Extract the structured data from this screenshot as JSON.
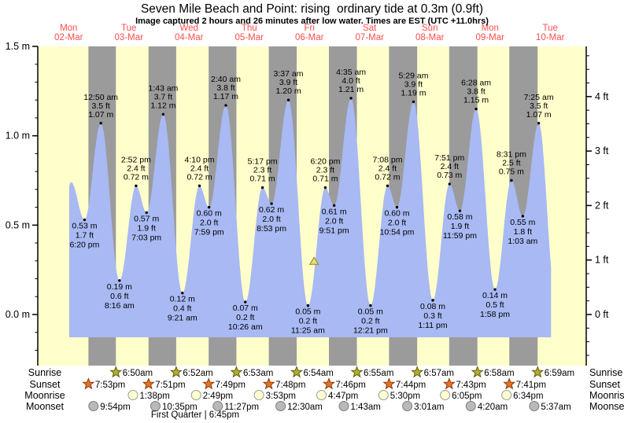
{
  "header": {
    "title": "Seven Mile Beach and Point: rising  ordinary tide at 0.3m (0.9ft)",
    "subtitle": "Image captured 2 hours and 26 minutes after low water. Times are EST (UTC +11.0hrs)"
  },
  "footer": {
    "row_labels_left": [
      "Sunrise",
      "Sunset",
      "Moonrise",
      "Moonset"
    ],
    "row_labels_right": [
      "Sunrise",
      "Sunset",
      "Moonrise",
      "Moonset"
    ],
    "moon_phase_note": "First Quarter | 6:45pm"
  },
  "colors": {
    "day_band": "#ffffcc",
    "night_band": "#9b9b9b",
    "tide_fill": "#a8b9f3",
    "day_header_text": "#ff4d4d",
    "axis_text": "#000000",
    "sunrise_star_fill": "#b5ae2a",
    "sunrise_star_stroke": "#5e5e14",
    "sunset_star_fill": "#e2761f",
    "sunset_star_stroke": "#8f3a10",
    "moonrise_fill": "#ffffd2",
    "moonrise_stroke": "#999999",
    "moonset_fill": "#b9b9b9",
    "moonset_stroke": "#7d7d7d",
    "marker_fill": "#e8e060",
    "marker_stroke": "#85852f"
  },
  "chart_data": {
    "type": "area",
    "title": "Seven Mile Beach and Point: rising ordinary tide at 0.3m (0.9ft)",
    "ylabel_left": "meters",
    "ylabel_right": "feet",
    "ylim_m": [
      -0.28,
      1.5
    ],
    "y_ticks_m": [
      {
        "v": 1.5,
        "label": "1.5 m"
      },
      {
        "v": 1.0,
        "label": "1.0 m"
      },
      {
        "v": 0.5,
        "label": "0.5 m"
      },
      {
        "v": 0.0,
        "label": "0.0 m"
      }
    ],
    "y_ticks_ft": [
      {
        "v": 4,
        "label": "4 ft"
      },
      {
        "v": 3,
        "label": "3 ft"
      },
      {
        "v": 2,
        "label": "2 ft"
      },
      {
        "v": 1,
        "label": "1 ft"
      },
      {
        "v": 0,
        "label": "0 ft"
      }
    ],
    "days": [
      {
        "weekday": "Mon",
        "date": "02-Mar"
      },
      {
        "weekday": "Tue",
        "date": "03-Mar"
      },
      {
        "weekday": "Wed",
        "date": "04-Mar"
      },
      {
        "weekday": "Thu",
        "date": "05-Mar"
      },
      {
        "weekday": "Fri",
        "date": "06-Mar"
      },
      {
        "weekday": "Sat",
        "date": "07-Mar"
      },
      {
        "weekday": "Sun",
        "date": "08-Mar"
      },
      {
        "weekday": "Mon",
        "date": "09-Mar"
      },
      {
        "weekday": "Tue",
        "date": "10-Mar"
      }
    ],
    "extremes": [
      {
        "day": 0,
        "time": "13:00",
        "type": "high",
        "m": 0.74,
        "labeled": false
      },
      {
        "day": 0,
        "time": "18:20",
        "type": "low",
        "m": 0.53,
        "labeled": true,
        "m_label": "0.53 m",
        "ft_label": "1.7 ft",
        "time_label": "6:20 pm"
      },
      {
        "day": 1,
        "time": "00:50",
        "type": "high",
        "m": 1.07,
        "labeled": true,
        "m_label": "1.07 m",
        "ft_label": "3.5 ft",
        "time_label": "12:50 am"
      },
      {
        "day": 1,
        "time": "08:16",
        "type": "low",
        "m": 0.19,
        "labeled": true,
        "m_label": "0.19 m",
        "ft_label": "0.6 ft",
        "time_label": "8:16 am"
      },
      {
        "day": 1,
        "time": "14:52",
        "type": "high",
        "m": 0.72,
        "labeled": true,
        "m_label": "0.72 m",
        "ft_label": "2.4 ft",
        "time_label": "2:52 pm"
      },
      {
        "day": 1,
        "time": "19:03",
        "type": "low",
        "m": 0.57,
        "labeled": true,
        "m_label": "0.57 m",
        "ft_label": "1.9 ft",
        "time_label": "7:03 pm"
      },
      {
        "day": 2,
        "time": "01:43",
        "type": "high",
        "m": 1.12,
        "labeled": true,
        "m_label": "1.12 m",
        "ft_label": "3.7 ft",
        "time_label": "1:43 am"
      },
      {
        "day": 2,
        "time": "09:21",
        "type": "low",
        "m": 0.12,
        "labeled": true,
        "m_label": "0.12 m",
        "ft_label": "0.4 ft",
        "time_label": "9:21 am"
      },
      {
        "day": 2,
        "time": "16:10",
        "type": "high",
        "m": 0.72,
        "labeled": true,
        "m_label": "0.72 m",
        "ft_label": "2.4 ft",
        "time_label": "4:10 pm"
      },
      {
        "day": 2,
        "time": "19:59",
        "type": "low",
        "m": 0.6,
        "labeled": true,
        "m_label": "0.60 m",
        "ft_label": "2.0 ft",
        "time_label": "7:59 pm"
      },
      {
        "day": 3,
        "time": "02:40",
        "type": "high",
        "m": 1.17,
        "labeled": true,
        "m_label": "1.17 m",
        "ft_label": "3.8 ft",
        "time_label": "2:40 am"
      },
      {
        "day": 3,
        "time": "10:26",
        "type": "low",
        "m": 0.07,
        "labeled": true,
        "m_label": "0.07 m",
        "ft_label": "0.2 ft",
        "time_label": "10:26 am"
      },
      {
        "day": 3,
        "time": "17:17",
        "type": "high",
        "m": 0.71,
        "labeled": true,
        "m_label": "0.71 m",
        "ft_label": "2.3 ft",
        "time_label": "5:17 pm"
      },
      {
        "day": 3,
        "time": "20:53",
        "type": "low",
        "m": 0.62,
        "labeled": true,
        "m_label": "0.62 m",
        "ft_label": "2.0 ft",
        "time_label": "8:53 pm"
      },
      {
        "day": 4,
        "time": "03:37",
        "type": "high",
        "m": 1.2,
        "labeled": true,
        "m_label": "1.20 m",
        "ft_label": "3.9 ft",
        "time_label": "3:37 am"
      },
      {
        "day": 4,
        "time": "11:25",
        "type": "low",
        "m": 0.05,
        "labeled": true,
        "m_label": "0.05 m",
        "ft_label": "0.2 ft",
        "time_label": "11:25 am"
      },
      {
        "day": 4,
        "time": "18:20",
        "type": "high",
        "m": 0.71,
        "labeled": true,
        "m_label": "0.71 m",
        "ft_label": "2.3 ft",
        "time_label": "6:20 pm"
      },
      {
        "day": 4,
        "time": "21:51",
        "type": "low",
        "m": 0.61,
        "labeled": true,
        "m_label": "0.61 m",
        "ft_label": "2.0 ft",
        "time_label": "9:51 pm"
      },
      {
        "day": 5,
        "time": "04:35",
        "type": "high",
        "m": 1.21,
        "labeled": true,
        "m_label": "1.21 m",
        "ft_label": "4.0 ft",
        "time_label": "4:35 am"
      },
      {
        "day": 5,
        "time": "12:21",
        "type": "low",
        "m": 0.05,
        "labeled": true,
        "m_label": "0.05 m",
        "ft_label": "0.2 ft",
        "time_label": "12:21 pm"
      },
      {
        "day": 5,
        "time": "19:08",
        "type": "high",
        "m": 0.72,
        "labeled": true,
        "m_label": "0.72 m",
        "ft_label": "2.4 ft",
        "time_label": "7:08 pm"
      },
      {
        "day": 5,
        "time": "22:54",
        "type": "low",
        "m": 0.6,
        "labeled": true,
        "m_label": "0.60 m",
        "ft_label": "2.0 ft",
        "time_label": "10:54 pm"
      },
      {
        "day": 6,
        "time": "05:29",
        "type": "high",
        "m": 1.19,
        "labeled": true,
        "m_label": "1.19 m",
        "ft_label": "3.9 ft",
        "time_label": "5:29 am"
      },
      {
        "day": 6,
        "time": "13:11",
        "type": "low",
        "m": 0.08,
        "labeled": true,
        "m_label": "0.08 m",
        "ft_label": "0.3 ft",
        "time_label": "1:11 pm"
      },
      {
        "day": 6,
        "time": "19:51",
        "type": "high",
        "m": 0.73,
        "labeled": true,
        "m_label": "0.73 m",
        "ft_label": "2.4 ft",
        "time_label": "7:51 pm"
      },
      {
        "day": 6,
        "time": "23:59",
        "type": "low",
        "m": 0.58,
        "labeled": true,
        "m_label": "0.58 m",
        "ft_label": "1.9 ft",
        "time_label": "11:59 pm"
      },
      {
        "day": 7,
        "time": "06:28",
        "type": "high",
        "m": 1.15,
        "labeled": true,
        "m_label": "1.15 m",
        "ft_label": "3.8 ft",
        "time_label": "6:28 am"
      },
      {
        "day": 7,
        "time": "13:58",
        "type": "low",
        "m": 0.14,
        "labeled": true,
        "m_label": "0.14 m",
        "ft_label": "0.5 ft",
        "time_label": "1:58 pm"
      },
      {
        "day": 7,
        "time": "20:31",
        "type": "high",
        "m": 0.75,
        "labeled": true,
        "m_label": "0.75 m",
        "ft_label": "2.5 ft",
        "time_label": "8:31 pm"
      },
      {
        "day": 8,
        "time": "01:03",
        "type": "low",
        "m": 0.55,
        "labeled": true,
        "m_label": "0.55 m",
        "ft_label": "1.8 ft",
        "time_label": "1:03 am"
      },
      {
        "day": 8,
        "time": "07:25",
        "type": "high",
        "m": 1.07,
        "labeled": true,
        "m_label": "1.07 m",
        "ft_label": "3.5 ft",
        "time_label": "7:25 am"
      }
    ],
    "edge_shape_points": [
      {
        "day": 0,
        "time": "07:00",
        "m": 0.2
      },
      {
        "day": 8,
        "time": "14:00",
        "m": 0.12
      }
    ],
    "data_start": {
      "day": 0,
      "time": "12:14"
    },
    "data_end": {
      "day": 8,
      "time": "12:19"
    },
    "current_tide_marker": {
      "day": 4,
      "time": "13:51",
      "m": 0.3,
      "meaning": "current tide level 0.3m, rising"
    },
    "sunrise": [
      {
        "day": 1,
        "time": "06:50",
        "label": "6:50am"
      },
      {
        "day": 2,
        "time": "06:52",
        "label": "6:52am"
      },
      {
        "day": 3,
        "time": "06:53",
        "label": "6:53am"
      },
      {
        "day": 4,
        "time": "06:54",
        "label": "6:54am"
      },
      {
        "day": 5,
        "time": "06:55",
        "label": "6:55am"
      },
      {
        "day": 6,
        "time": "06:57",
        "label": "6:57am"
      },
      {
        "day": 7,
        "time": "06:58",
        "label": "6:58am"
      },
      {
        "day": 8,
        "time": "06:59",
        "label": "6:59am"
      }
    ],
    "sunset": [
      {
        "day": 0,
        "time": "19:53",
        "label": "7:53pm"
      },
      {
        "day": 1,
        "time": "19:51",
        "label": "7:51pm"
      },
      {
        "day": 2,
        "time": "19:49",
        "label": "7:49pm"
      },
      {
        "day": 3,
        "time": "19:48",
        "label": "7:48pm"
      },
      {
        "day": 4,
        "time": "19:46",
        "label": "7:46pm"
      },
      {
        "day": 5,
        "time": "19:44",
        "label": "7:44pm"
      },
      {
        "day": 6,
        "time": "19:43",
        "label": "7:43pm"
      },
      {
        "day": 7,
        "time": "19:41",
        "label": "7:41pm"
      }
    ],
    "moonrise": [
      {
        "day": 1,
        "time": "13:38",
        "label": "1:38pm"
      },
      {
        "day": 2,
        "time": "14:49",
        "label": "2:49pm"
      },
      {
        "day": 3,
        "time": "15:53",
        "label": "3:53pm"
      },
      {
        "day": 4,
        "time": "16:47",
        "label": "4:47pm"
      },
      {
        "day": 5,
        "time": "17:30",
        "label": "5:30pm"
      },
      {
        "day": 6,
        "time": "18:05",
        "label": "6:05pm"
      },
      {
        "day": 7,
        "time": "18:34",
        "label": "6:34pm"
      }
    ],
    "moonset": [
      {
        "day": 0,
        "time": "21:54",
        "label": "9:54pm"
      },
      {
        "day": 1,
        "time": "22:35",
        "label": "10:35pm"
      },
      {
        "day": 2,
        "time": "23:27",
        "label": "11:27pm"
      },
      {
        "day": 4,
        "time": "00:30",
        "label": "12:30am"
      },
      {
        "day": 5,
        "time": "01:43",
        "label": "1:43am"
      },
      {
        "day": 6,
        "time": "03:01",
        "label": "3:01am"
      },
      {
        "day": 7,
        "time": "04:20",
        "label": "4:20am"
      },
      {
        "day": 8,
        "time": "05:37",
        "label": "5:37am"
      }
    ]
  }
}
